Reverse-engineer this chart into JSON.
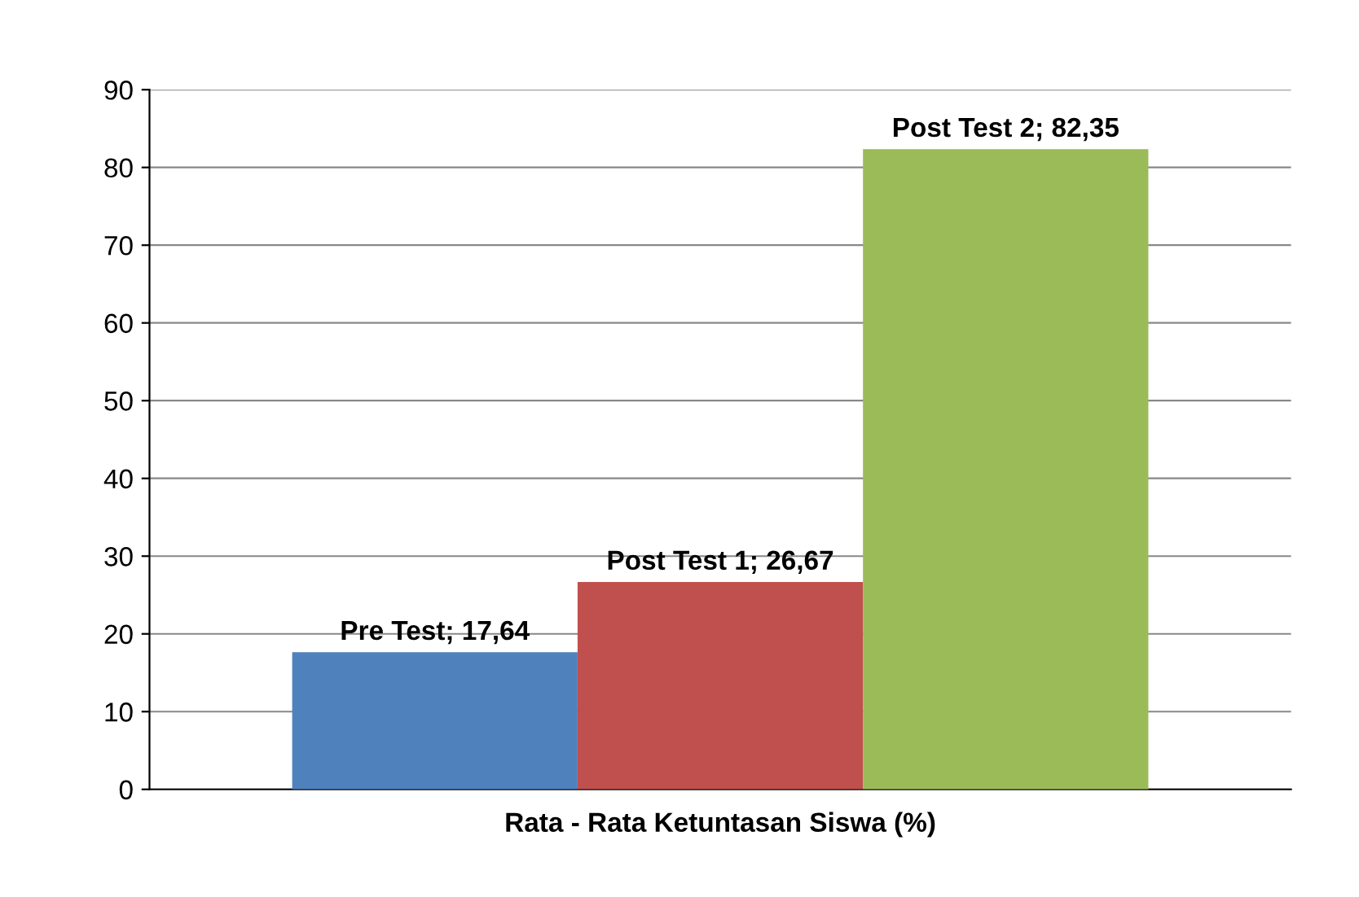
{
  "chart_data": {
    "type": "bar",
    "categories": [
      "Rata - Rata Ketuntasan Siswa (%)"
    ],
    "series": [
      {
        "name": "Pre Test",
        "color": "#4f81bd",
        "values": [
          17.64
        ],
        "value_labels": [
          "; 17,64"
        ]
      },
      {
        "name": "Post Test 1",
        "color": "#c0504d",
        "values": [
          26.67
        ],
        "value_labels": [
          "; 26,67"
        ]
      },
      {
        "name": "Post Test 2",
        "color": "#9bbb59",
        "values": [
          82.35
        ],
        "value_labels": [
          "; 82,35"
        ]
      }
    ],
    "ylim": [
      0,
      90
    ],
    "yticks": [
      0,
      10,
      20,
      30,
      40,
      50,
      60,
      70,
      80,
      90
    ],
    "grid": "y",
    "legend": false
  }
}
